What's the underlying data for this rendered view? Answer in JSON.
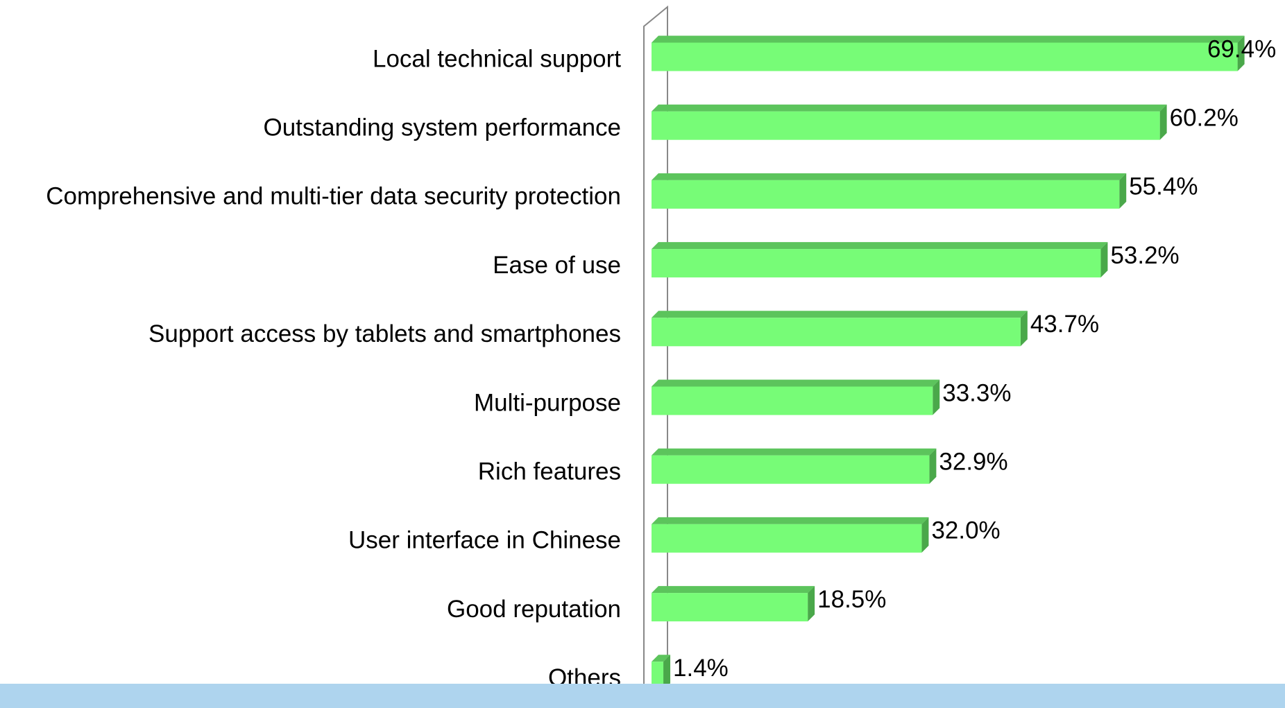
{
  "chart_data": {
    "type": "bar",
    "orientation": "horizontal",
    "categories": [
      "Local technical support",
      "Outstanding system performance",
      "Comprehensive and multi-tier data security protection",
      "Ease of use",
      "Support access by tablets and smartphones",
      "Multi-purpose",
      "Rich features",
      "User interface in Chinese",
      "Good reputation",
      "Others"
    ],
    "values": [
      69.4,
      60.2,
      55.4,
      53.2,
      43.7,
      33.3,
      32.9,
      32.0,
      18.5,
      1.4
    ],
    "value_labels": [
      "69.4%",
      "60.2%",
      "55.4%",
      "53.2%",
      "43.7%",
      "33.3%",
      "32.9%",
      "32.0%",
      "18.5%",
      "1.4%"
    ],
    "color": "#77fc77"
  }
}
